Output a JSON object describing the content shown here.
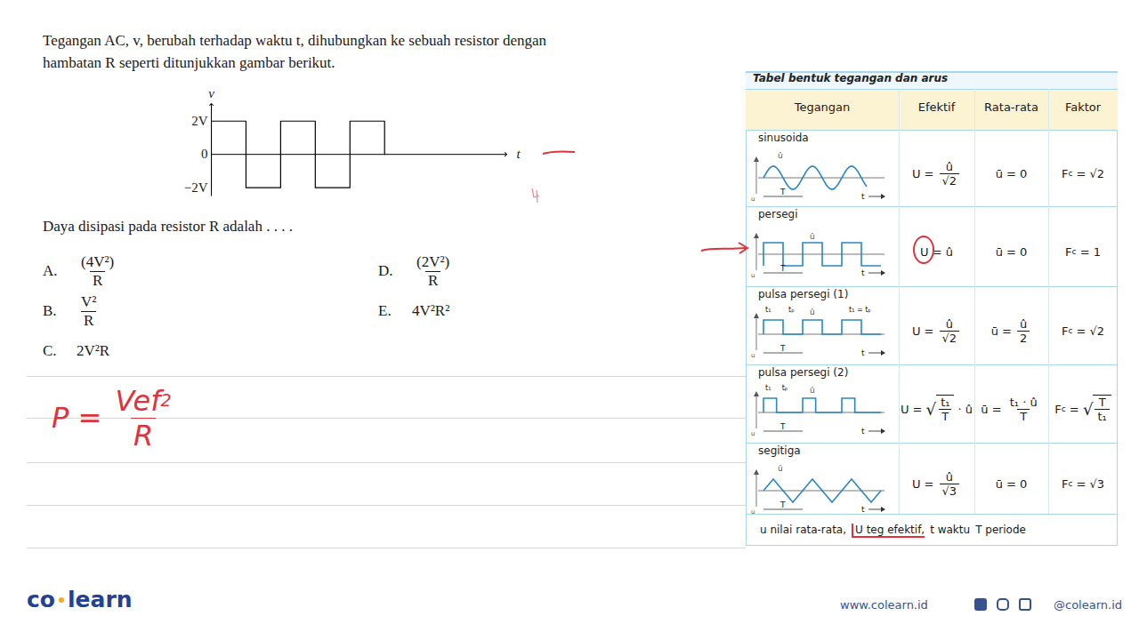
{
  "header": {
    "lines": [
      "Tegangan AC, v, berubah terhadap waktu t, dihubungkan ke sebuah resistor dengan",
      "hambatan R seperti ditunjukkan gambar berikut."
    ]
  },
  "chart_data": {
    "type": "line",
    "x_label": "t",
    "y_label": "v",
    "x": [
      0,
      0,
      1,
      2,
      3,
      4,
      5
    ],
    "values": [
      -2,
      2,
      -2,
      2,
      -2,
      2,
      0
    ],
    "line_style": "step",
    "color": "#000000",
    "xlim": [
      0,
      8.5
    ],
    "xticks": [],
    "ylim": [
      -2.5,
      3
    ],
    "yticks": [
      {
        "value": 2,
        "label": "2V"
      },
      0,
      {
        "value": -2,
        "label": "−2V"
      }
    ],
    "tick_labels": "y"
  },
  "question": "Daya disipasi pada resistor R adalah . . . .",
  "options": [
    {
      "letter": "A.",
      "formula": [
        {
          "num": "(4V²)",
          "den": "R"
        }
      ]
    },
    {
      "letter": "B.",
      "formula": [
        {
          "num": "V²",
          "den": "R"
        }
      ]
    },
    {
      "letter": "C.",
      "formula": [
        "2V²R"
      ]
    },
    {
      "letter": "D.",
      "formula": [
        {
          "num": "(2V²)",
          "den": "R"
        }
      ]
    },
    {
      "letter": "E.",
      "formula": [
        "4V²R²"
      ]
    }
  ],
  "handwriting": [
    "P = ",
    {
      "num": [
        "Vef",
        {
          "sup": "2"
        }
      ],
      "den": [
        "R"
      ]
    }
  ],
  "table": {
    "title": "Tabel bentuk tegangan dan arus",
    "columns": [
      "Tegangan",
      "Efektif",
      "Rata-rata",
      "Faktor"
    ],
    "rows": [
      {
        "name": "sinusoida",
        "shape": "sine",
        "labels": {
          "peak": "û",
          "period": "T",
          "time": "t",
          "axis": "u"
        },
        "efektif": [
          "U = ",
          {
            "num": "û",
            "den": "√2"
          }
        ],
        "rata": [
          "ū = 0"
        ],
        "faktor": [
          "F",
          {
            "sub": "c"
          },
          " = √2"
        ]
      },
      {
        "name": "persegi",
        "shape": "square",
        "arrow": true,
        "circled": true,
        "labels": {
          "peak": "û",
          "period": "T",
          "time": "t",
          "axis": "u"
        },
        "efektif": [
          "U = û"
        ],
        "rata": [
          "ū = 0"
        ],
        "faktor": [
          "F",
          {
            "sub": "c"
          },
          " = 1"
        ]
      },
      {
        "name": "pulsa persegi (1)",
        "shape": "pulse1",
        "labels": {
          "peak": "û",
          "period": "T",
          "time": "t",
          "axis": "u",
          "t1": "t₁",
          "tp": "tₚ",
          "note": "t₁ = tₚ"
        },
        "efektif": [
          "U = ",
          {
            "num": "û",
            "den": "√2"
          }
        ],
        "rata": [
          "ū = ",
          {
            "num": "û",
            "den": "2"
          }
        ],
        "faktor": [
          "F",
          {
            "sub": "c"
          },
          " = √2"
        ]
      },
      {
        "name": "pulsa persegi (2)",
        "shape": "pulse2",
        "labels": {
          "peak": "û",
          "period": "T",
          "time": "t",
          "axis": "u",
          "t1": "t₁",
          "tp": "tₚ"
        },
        "efektif": [
          "U = ",
          {
            "sqrt": {
              "num": "t₁",
              "den": "T"
            }
          },
          " · û"
        ],
        "rata": [
          "ū = ",
          {
            "num": "t₁ · û",
            "den": "T"
          }
        ],
        "faktor": [
          "F",
          {
            "sub": "c"
          },
          " = ",
          {
            "sqrt": {
              "num": "T",
              "den": "t₁"
            }
          }
        ]
      },
      {
        "name": "segitiga",
        "shape": "triangle",
        "labels": {
          "peak": "û",
          "period": "T",
          "time": "t",
          "axis": "u"
        },
        "efektif": [
          "U = ",
          {
            "num": "û",
            "den": "√3"
          }
        ],
        "rata": [
          "ū = 0"
        ],
        "faktor": [
          "F",
          {
            "sub": "c"
          },
          " = √3"
        ]
      }
    ],
    "legend": [
      {
        "text": "u nilai rata-rata,"
      },
      {
        "text": "U teg efektif,",
        "marked": true
      },
      {
        "text": "t waktu"
      },
      {
        "text": "T periode"
      }
    ]
  },
  "footer": {
    "logo": [
      "co",
      "learn"
    ],
    "website": "www.colearn.id",
    "social": "@colearn.id"
  }
}
